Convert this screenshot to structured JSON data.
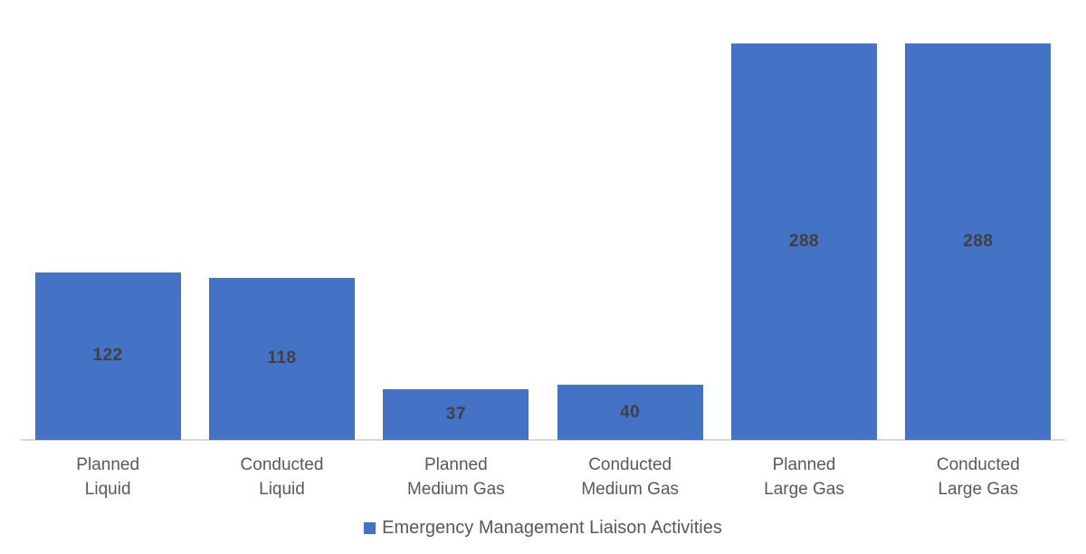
{
  "chart_data": {
    "type": "bar",
    "title": "",
    "xlabel": "",
    "ylabel": "",
    "categories": [
      "Planned\nLiquid",
      "Conducted\nLiquid",
      "Planned\nMedium Gas",
      "Conducted\nMedium Gas",
      "Planned\nLarge Gas",
      "Conducted\nLarge Gas"
    ],
    "values": [
      122,
      118,
      37,
      40,
      288,
      288
    ],
    "series_name": "Emergency Management Liaison Activities",
    "ylim": [
      0,
      300
    ],
    "grid": false,
    "legend_position": "bottom",
    "data_labels": "center",
    "colors": {
      "bar": "#4472C4",
      "value_label": "#404040",
      "axis_text": "#595959",
      "axis_line": "#D9D9D9"
    }
  },
  "legend": {
    "label": "Emergency Management Liaison Activities"
  }
}
